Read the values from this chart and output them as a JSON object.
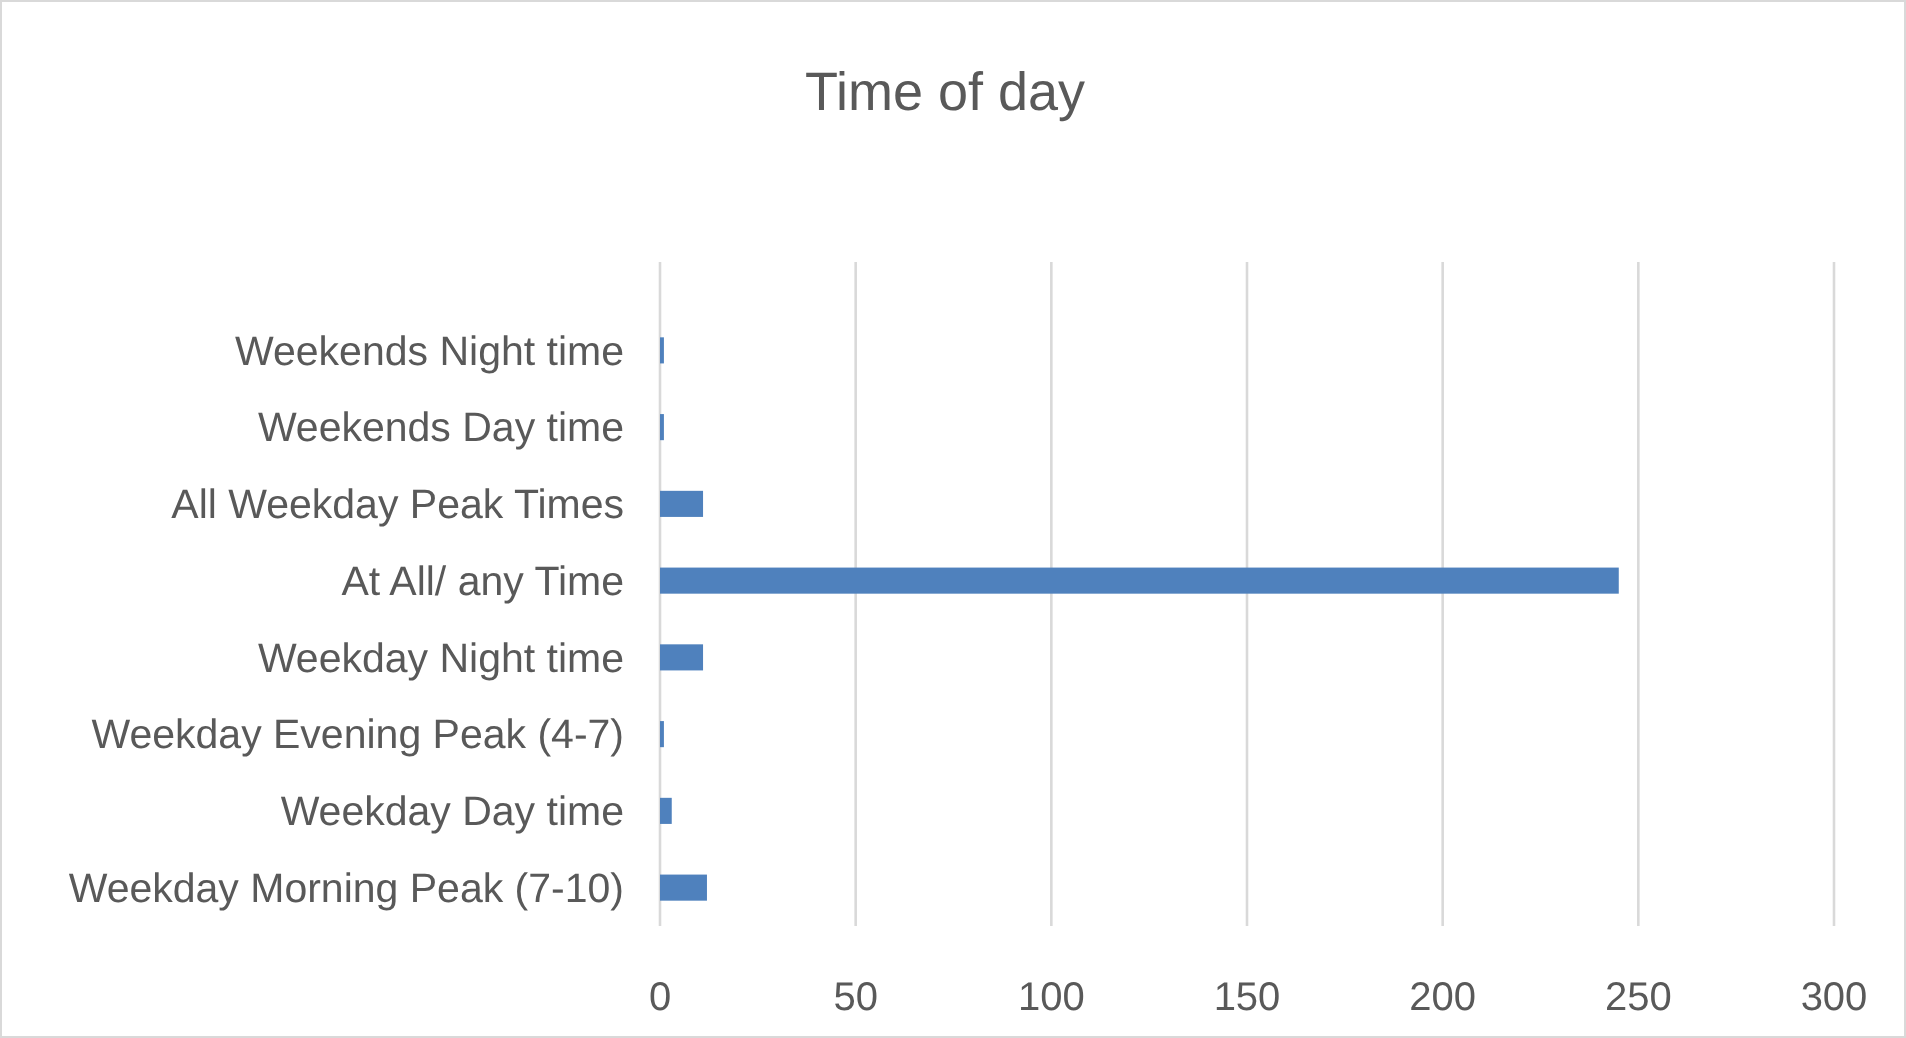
{
  "chart_data": {
    "type": "bar",
    "orientation": "horizontal",
    "title": "Time of day",
    "categories": [
      "Weekends Night time",
      "Weekends Day time",
      "All Weekday Peak Times",
      "At All/ any Time",
      "Weekday Night time",
      "Weekday Evening Peak (4-7)",
      "Weekday Day time",
      "Weekday Morning Peak (7-10)"
    ],
    "values": [
      1,
      1,
      11,
      245,
      11,
      1,
      3,
      12
    ],
    "color": "#4f81bd",
    "xlim": [
      0,
      300
    ],
    "xticks": [
      0,
      50,
      100,
      150,
      200,
      250,
      300
    ],
    "grid": "x"
  }
}
